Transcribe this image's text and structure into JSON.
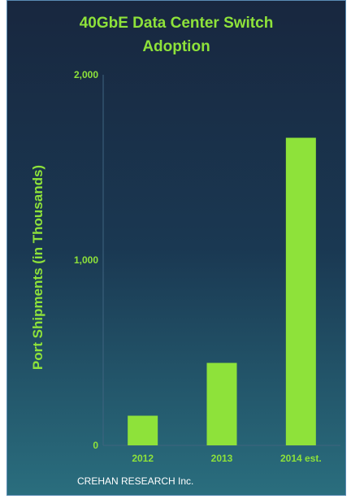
{
  "chart_data": {
    "type": "bar",
    "title_lines": [
      "40GbE Data Center Switch",
      "Adoption"
    ],
    "ylabel": "Port Shipments (in Thousands)",
    "xlabel": "",
    "categories": [
      "2012",
      "2013",
      "2014 est."
    ],
    "values": [
      160,
      445,
      1660
    ],
    "ylim": [
      0,
      2000
    ],
    "yticks": [
      0,
      1000,
      2000
    ],
    "ytick_labels": [
      "0",
      "1,000",
      "2,000"
    ],
    "grid": false,
    "legend": "none",
    "bar_color": "#8ee23a",
    "text_color": "#8ee23a"
  },
  "source": "CREHAN RESEARCH Inc."
}
